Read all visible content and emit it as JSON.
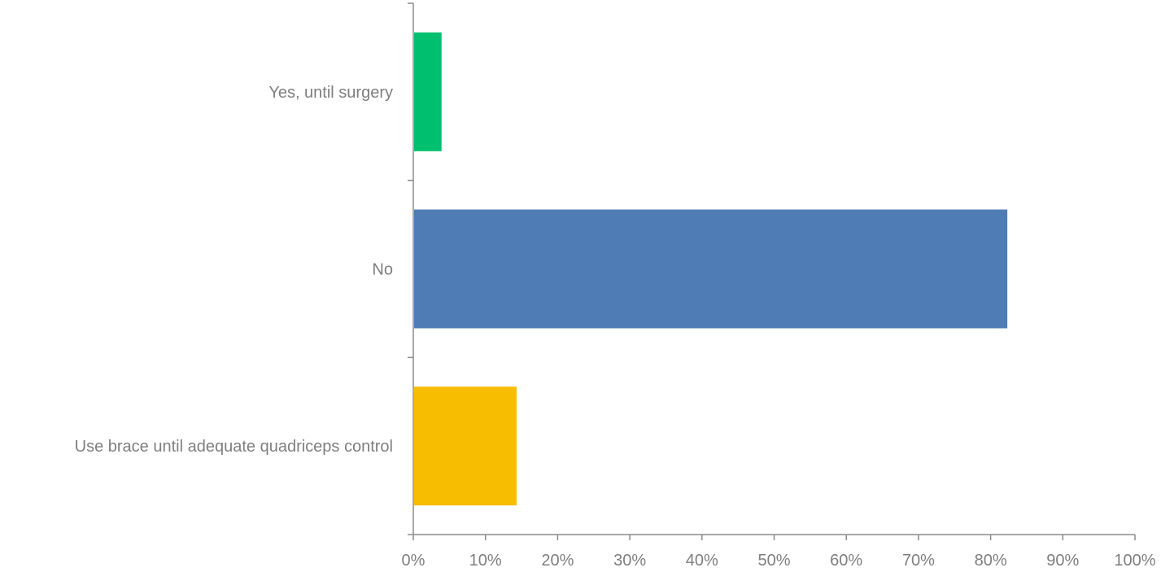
{
  "chart_data": {
    "type": "bar",
    "orientation": "horizontal",
    "categories": [
      "Yes, until surgery",
      "No",
      "Use brace until adequate quadriceps control"
    ],
    "values": [
      3.8,
      82.2,
      14.2
    ],
    "colors": [
      "#00bf6f",
      "#4f7cb5",
      "#f7bd00"
    ],
    "xlim": [
      0,
      100
    ],
    "x_ticks": [
      "0%",
      "10%",
      "20%",
      "30%",
      "40%",
      "50%",
      "60%",
      "70%",
      "80%",
      "90%",
      "100%"
    ],
    "title": "",
    "xlabel": "",
    "ylabel": "",
    "grid": false,
    "legend": "none"
  }
}
